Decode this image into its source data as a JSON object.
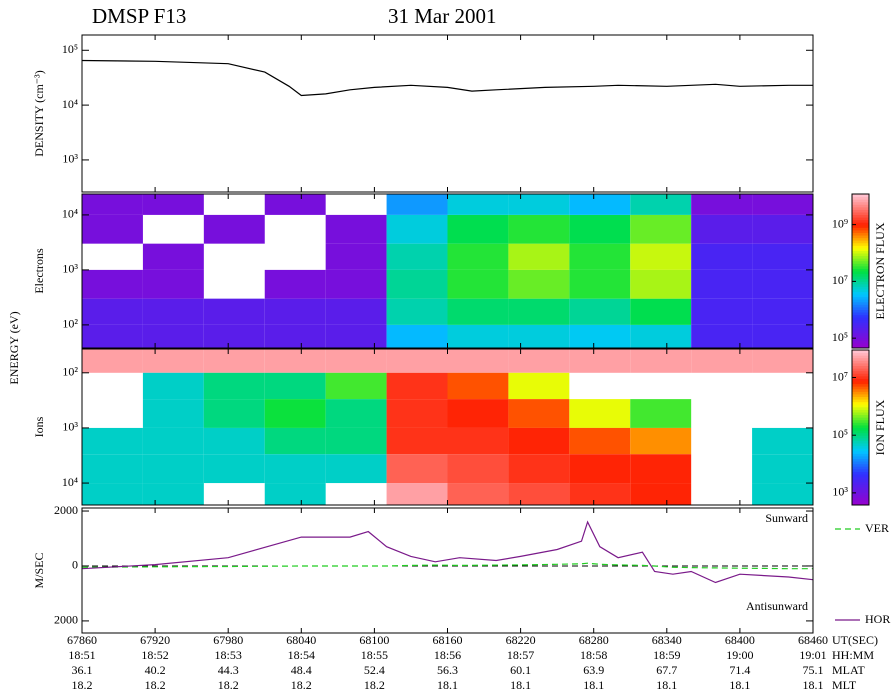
{
  "header": {
    "satellite": "DMSP F13",
    "date": "31 Mar 2001"
  },
  "time_axis": {
    "xlim": [
      67860,
      68460
    ],
    "xticks": [
      67860,
      67920,
      67980,
      68040,
      68100,
      68160,
      68220,
      68280,
      68340,
      68400,
      68460
    ],
    "xticks_name": "UT(SEC)",
    "rows": [
      {
        "name": "HH:MM",
        "labels": [
          "18:51",
          "18:52",
          "18:53",
          "18:54",
          "18:55",
          "18:56",
          "18:57",
          "18:58",
          "18:59",
          "19:00",
          "19:01"
        ]
      },
      {
        "name": "MLAT",
        "labels": [
          36.1,
          40.2,
          44.3,
          48.4,
          52.4,
          56.3,
          60.1,
          63.9,
          67.7,
          71.4,
          75.1
        ]
      },
      {
        "name": "MLT",
        "labels": [
          18.2,
          18.2,
          18.2,
          18.2,
          18.2,
          18.1,
          18.1,
          18.1,
          18.1,
          18.1,
          18.1
        ]
      }
    ]
  },
  "chart_data": [
    {
      "type": "line",
      "ylabel": "DENSITY (cm⁻³)",
      "ylog": true,
      "ylim": [
        260,
        190000
      ],
      "yticks": [
        {
          "value": 1000,
          "label": "10³"
        },
        {
          "value": 10000,
          "label": "10⁴"
        },
        {
          "value": 100000,
          "label": "10⁵"
        }
      ],
      "x": [
        67860,
        67920,
        67980,
        68010,
        68030,
        68040,
        68060,
        68080,
        68100,
        68130,
        68160,
        68180,
        68200,
        68240,
        68280,
        68300,
        68340,
        68380,
        68400,
        68440,
        68460
      ],
      "series": [
        {
          "color": "#000000",
          "values": [
            65000,
            63000,
            57000,
            40000,
            22000,
            15000,
            16000,
            19000,
            21000,
            23000,
            21000,
            18000,
            19000,
            21000,
            22000,
            23000,
            22000,
            24000,
            22000,
            23000,
            23000
          ]
        }
      ]
    },
    {
      "type": "heatmap",
      "label": "Electrons",
      "ylabel": "ENERGY (eV)",
      "ylog": true,
      "ylim": [
        38,
        24000
      ],
      "y_inverted": false,
      "yticks": [
        {
          "value": 100,
          "label": "10²"
        },
        {
          "value": 1000,
          "label": "10³"
        },
        {
          "value": 10000,
          "label": "10⁴"
        }
      ],
      "x_edges": [
        67860,
        67910,
        67960,
        68010,
        68060,
        68110,
        68160,
        68210,
        68260,
        68310,
        68360,
        68410,
        68460
      ],
      "y_edges": [
        38,
        100,
        300,
        1000,
        3000,
        10000,
        24000
      ],
      "values": [
        [
          200000,
          200000,
          200000,
          200000,
          200000,
          3000000,
          5000000,
          5000000,
          4000000,
          5000000,
          300000,
          300000
        ],
        [
          200000,
          200000,
          200000,
          200000,
          200000,
          8000000,
          15000000,
          15000000,
          10000000,
          20000000,
          300000,
          300000
        ],
        [
          100000,
          100000,
          null,
          100000,
          100000,
          10000000,
          30000000,
          50000000,
          30000000,
          80000000,
          300000,
          300000
        ],
        [
          null,
          100000,
          null,
          null,
          100000,
          8000000,
          30000000,
          80000000,
          30000000,
          100000000,
          300000,
          300000
        ],
        [
          100000,
          null,
          100000,
          null,
          100000,
          5000000,
          20000000,
          30000000,
          20000000,
          50000000,
          200000,
          200000
        ],
        [
          100000,
          100000,
          null,
          100000,
          null,
          2000000,
          5000000,
          5000000,
          3000000,
          8000000,
          100000,
          100000
        ]
      ],
      "colormap": "rainbow",
      "zlog": true,
      "zlim": [
        45000,
        12000000000
      ],
      "zlabel": "ELECTRON FLUX",
      "zticks": [
        {
          "value": 100000,
          "label": "10⁵"
        },
        {
          "value": 10000000,
          "label": "10⁷"
        },
        {
          "value": 1000000000,
          "label": "10⁹"
        }
      ]
    },
    {
      "type": "heatmap",
      "label": "Ions",
      "ylog": true,
      "ylim": [
        37,
        25000
      ],
      "y_inverted": true,
      "yticks": [
        {
          "value": 100,
          "label": "10²"
        },
        {
          "value": 1000,
          "label": "10³"
        },
        {
          "value": 10000,
          "label": "10⁴"
        }
      ],
      "x_edges": [
        67860,
        67910,
        67960,
        68010,
        68060,
        68110,
        68160,
        68210,
        68260,
        68310,
        68360,
        68410,
        68460
      ],
      "y_edges": [
        37,
        100,
        300,
        1000,
        3000,
        10000,
        25000
      ],
      "values": [
        [
          50000000,
          50000000,
          50000000,
          50000000,
          50000000,
          50000000,
          50000000,
          50000000,
          50000000,
          50000000,
          50000000,
          50000000
        ],
        [
          null,
          50000,
          100000,
          100000,
          300000,
          10000000,
          5000000,
          1000000,
          null,
          null,
          null,
          null
        ],
        [
          null,
          50000,
          100000,
          200000,
          100000,
          10000000,
          8000000,
          5000000,
          1000000,
          300000,
          null,
          null
        ],
        [
          50000,
          50000,
          50000,
          100000,
          100000,
          10000000,
          10000000,
          8000000,
          5000000,
          3000000,
          null,
          50000
        ],
        [
          50000,
          50000,
          50000,
          50000,
          50000,
          20000000,
          15000000,
          10000000,
          8000000,
          8000000,
          null,
          50000
        ],
        [
          50000,
          50000,
          null,
          50000,
          null,
          50000000,
          20000000,
          15000000,
          10000000,
          8000000,
          null,
          50000
        ]
      ],
      "colormap": "rainbow",
      "zlog": true,
      "zlim": [
        380,
        90000000
      ],
      "zlabel": "ION FLUX",
      "zticks": [
        {
          "value": 1000,
          "label": "10³"
        },
        {
          "value": 100000,
          "label": "10⁵"
        },
        {
          "value": 10000000,
          "label": "10⁷"
        }
      ]
    },
    {
      "type": "line",
      "ylabel": "M/SEC",
      "ylog": false,
      "ylim": [
        -2440,
        2110
      ],
      "yticks": [
        {
          "value": -2000,
          "label": "2000"
        },
        0,
        2000
      ],
      "annotations": [
        {
          "text": "Sunward"
        },
        {
          "text": "Antisunward"
        }
      ],
      "legend": "right",
      "x": [
        67860,
        67920,
        67980,
        68040,
        68080,
        68095,
        68110,
        68130,
        68150,
        68170,
        68200,
        68220,
        68250,
        68270,
        68275,
        68285,
        68300,
        68320,
        68330,
        68345,
        68360,
        68380,
        68400,
        68420,
        68440,
        68460
      ],
      "series": [
        {
          "name": "VER",
          "color": "#22cc22",
          "dash": true,
          "values": [
            -50,
            -30,
            -20,
            0,
            0,
            0,
            0,
            20,
            30,
            20,
            30,
            40,
            60,
            80,
            100,
            60,
            40,
            20,
            0,
            -50,
            -60,
            -70,
            -80,
            -90,
            -100,
            -100
          ]
        },
        {
          "name": "HOR",
          "color": "#7a1a8a",
          "dash": false,
          "values": [
            -100,
            50,
            300,
            1050,
            1050,
            1250,
            700,
            350,
            150,
            300,
            200,
            350,
            600,
            900,
            1600,
            700,
            300,
            500,
            -200,
            -300,
            -200,
            -600,
            -300,
            -350,
            -400,
            -500
          ]
        }
      ]
    }
  ]
}
